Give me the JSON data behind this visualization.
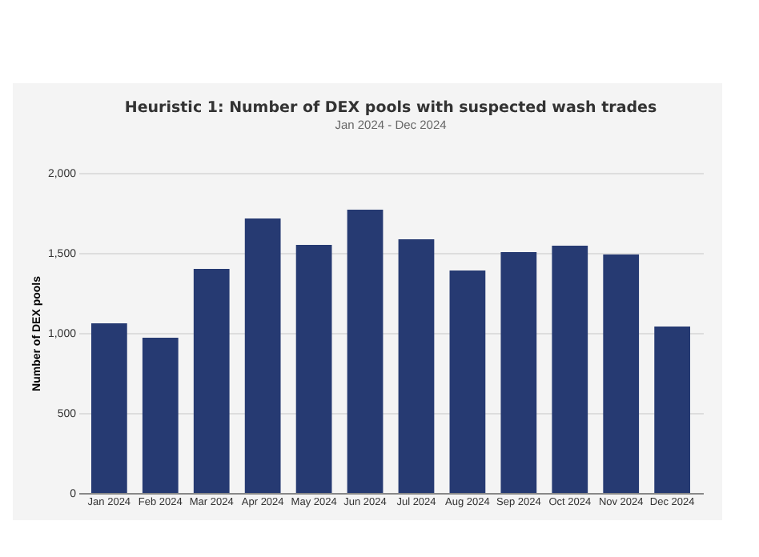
{
  "chart_data": {
    "type": "bar",
    "title": "Heuristic 1: Number of DEX pools with suspected wash trades",
    "subtitle": "Jan 2024 - Dec 2024",
    "ylabel": "Number of DEX pools",
    "categories": [
      "Jan 2024",
      "Feb 2024",
      "Mar 2024",
      "Apr 2024",
      "May 2024",
      "Jun 2024",
      "Jul 2024",
      "Aug 2024",
      "Sep 2024",
      "Oct 2024",
      "Nov 2024",
      "Dec 2024"
    ],
    "values": [
      1060,
      970,
      1400,
      1715,
      1550,
      1770,
      1585,
      1390,
      1505,
      1545,
      1490,
      1040
    ],
    "color": "#263a72",
    "ylim": [
      0,
      2000
    ],
    "yticks": [
      {
        "value": 0,
        "label": "0"
      },
      {
        "value": 500,
        "label": "500"
      },
      {
        "value": 1000,
        "label": "1,000"
      },
      {
        "value": 1500,
        "label": "1,500"
      },
      {
        "value": 2000,
        "label": "2,000"
      }
    ],
    "grid": "y"
  }
}
